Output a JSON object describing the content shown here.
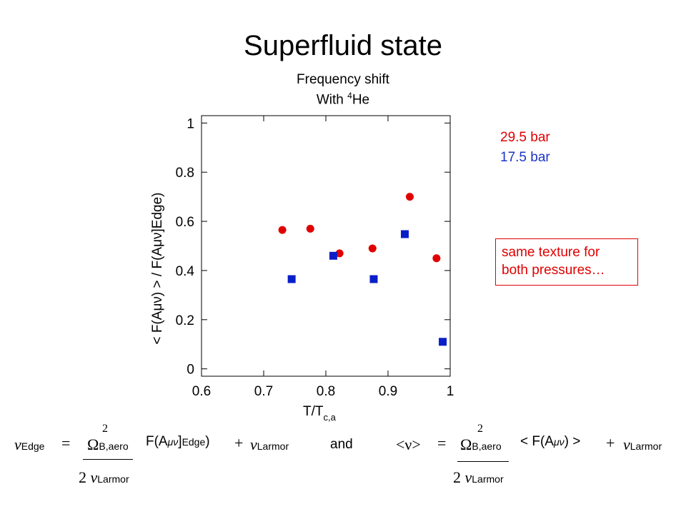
{
  "title": "Superfluid state",
  "subtitle": {
    "line1": "Frequency shift",
    "line2_prefix": "With ",
    "line2_sup": "4",
    "line2_suffix": "He"
  },
  "legend": {
    "series1": "29.5 bar",
    "series2": "17.5 bar"
  },
  "note": {
    "line1": "same texture for",
    "line2": "both pressures…"
  },
  "colors": {
    "series1": "#e00000",
    "series2": "#0a1ec8"
  },
  "chart_data": {
    "type": "scatter",
    "xlabel": "T/T",
    "xlabel_sub": "c,a",
    "ylabel": "< F(Aμν) > / F(Aμν]Edge)",
    "xlim": [
      0.6,
      1.0
    ],
    "ylim": [
      -0.03,
      1.03
    ],
    "xticks": [
      0.6,
      0.7,
      0.8,
      0.9,
      1
    ],
    "xtick_labels": [
      "0.6",
      "0.7",
      "0.8",
      "0.9",
      "1"
    ],
    "yticks": [
      0,
      0.2,
      0.4,
      0.6,
      0.8,
      1
    ],
    "ytick_labels": [
      "0",
      "0.2",
      "0.4",
      "0.6",
      "0.8",
      "1"
    ],
    "series": [
      {
        "name": "29.5 bar",
        "marker": "circle",
        "x": [
          0.73,
          0.775,
          0.822,
          0.875,
          0.935,
          0.978
        ],
        "y": [
          0.565,
          0.57,
          0.47,
          0.49,
          0.7,
          0.45
        ]
      },
      {
        "name": "17.5 bar",
        "marker": "square",
        "x": [
          0.745,
          0.812,
          0.877,
          0.927,
          0.988
        ],
        "y": [
          0.365,
          0.46,
          0.365,
          0.548,
          0.11
        ]
      }
    ]
  },
  "equations": {
    "eq1": {
      "nu": "ν",
      "nu_sub": "Edge",
      "equals": "=",
      "omega": "Ω",
      "omega_sub": "B,aero",
      "omega_sup": "2",
      "func": "F(A",
      "mn": "μν",
      "close": "]",
      "edge_sub": "Edge",
      "paren": ")",
      "plus": "+",
      "nu_larmor": "ν",
      "larmor_sub": "Larmor",
      "den_two": "2",
      "den_nu": "ν",
      "den_sub": "Larmor"
    },
    "and": "and",
    "eq2": {
      "lhs": "<ν>",
      "equals": "=",
      "omega": "Ω",
      "omega_sub": "B,aero",
      "omega_sup": "2",
      "func": "< F(A",
      "mn": "μν",
      "close": ") >",
      "plus": "+",
      "nu_larmor": "ν",
      "larmor_sub": "Larmor",
      "den_two": "2",
      "den_nu": "ν",
      "den_sub": "Larmor"
    }
  }
}
